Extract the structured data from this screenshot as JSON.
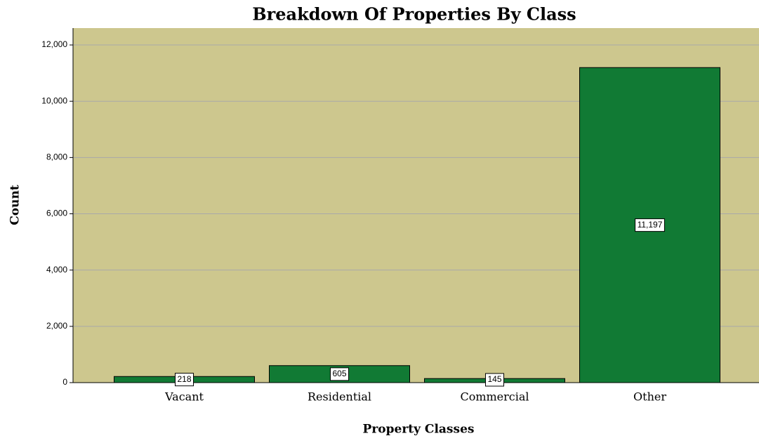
{
  "chart_data": {
    "type": "bar",
    "title": "Breakdown Of Properties By Class",
    "x_label": "Property Classes",
    "y_label": "Count",
    "categories": [
      "Vacant",
      "Residential",
      "Commercial",
      "Other"
    ],
    "values": [
      218,
      605,
      145,
      11197
    ],
    "value_labels": [
      "218",
      "605",
      "145",
      "11,197"
    ],
    "color": "#117a34",
    "ylim": [
      0,
      12600
    ],
    "yticks": [
      0,
      {
        "value": 2000,
        "label": "2,000"
      },
      {
        "value": 4000,
        "label": "4,000"
      },
      {
        "value": 6000,
        "label": "6,000"
      },
      {
        "value": 8000,
        "label": "8,000"
      },
      {
        "value": 10000,
        "label": "10,000"
      },
      {
        "value": 12000,
        "label": "12,000"
      }
    ],
    "grid": true
  }
}
